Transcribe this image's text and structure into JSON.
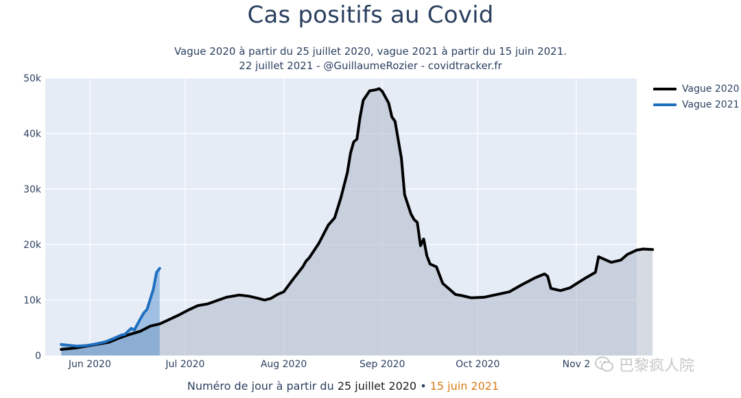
{
  "chart_data": {
    "type": "area",
    "title": "Cas positifs au Covid",
    "subtitle_line1": "Vague 2020 à partir du 25 juillet 2020, vague 2021 à partir du 15 juin 2021.",
    "subtitle_line2": "22 juillet 2021 - @GuillaumeRozier - covidtracker.fr",
    "xlabel_prefix": "Numéro de jour à partir du ",
    "xlabel_date2020": "25 juillet 2020",
    "xlabel_sep": " • ",
    "xlabel_date2021": "15 juin 2021",
    "x_tick_labels": [
      "Jun 2020",
      "Jul 2020",
      "Aug 2020",
      "Sep 2020",
      "Oct 2020",
      "Nov 2"
    ],
    "x_tick_days": [
      9,
      39,
      70,
      101,
      131,
      162
    ],
    "x_range": [
      -5,
      181
    ],
    "y_ticks": [
      0,
      10000,
      20000,
      30000,
      40000,
      50000
    ],
    "y_tick_labels": [
      "0",
      "10k",
      "20k",
      "30k",
      "40k",
      "50k"
    ],
    "ylim": [
      0,
      50000
    ],
    "grid": true,
    "legend_position": "top-right",
    "series": [
      {
        "name": "Vague 2020",
        "color": "#000000",
        "fill": "rgba(165,172,190,0.45)",
        "points": [
          [
            0,
            1100
          ],
          [
            5,
            1400
          ],
          [
            10,
            1900
          ],
          [
            15,
            2400
          ],
          [
            18,
            3100
          ],
          [
            21,
            3700
          ],
          [
            25,
            4400
          ],
          [
            28,
            5300
          ],
          [
            31,
            5700
          ],
          [
            34,
            6500
          ],
          [
            37,
            7300
          ],
          [
            40,
            8200
          ],
          [
            43,
            9000
          ],
          [
            46,
            9300
          ],
          [
            49,
            9900
          ],
          [
            52,
            10500
          ],
          [
            56,
            10900
          ],
          [
            59,
            10700
          ],
          [
            62,
            10300
          ],
          [
            64,
            10000
          ],
          [
            66,
            10300
          ],
          [
            68,
            11000
          ],
          [
            70,
            11500
          ],
          [
            73,
            13800
          ],
          [
            76,
            16000
          ],
          [
            77,
            17000
          ],
          [
            78,
            17600
          ],
          [
            81,
            20200
          ],
          [
            84,
            23500
          ],
          [
            86,
            24800
          ],
          [
            88,
            28500
          ],
          [
            90,
            33000
          ],
          [
            91,
            36500
          ],
          [
            92,
            38500
          ],
          [
            93,
            39000
          ],
          [
            94,
            43000
          ],
          [
            95,
            46000
          ],
          [
            97,
            47700
          ],
          [
            99,
            47900
          ],
          [
            100,
            48100
          ],
          [
            101,
            47600
          ],
          [
            103,
            45500
          ],
          [
            104,
            43000
          ],
          [
            105,
            42200
          ],
          [
            107,
            35500
          ],
          [
            108,
            29000
          ],
          [
            110,
            25500
          ],
          [
            111,
            24500
          ],
          [
            112,
            24000
          ],
          [
            113,
            19800
          ],
          [
            114,
            21000
          ],
          [
            115,
            18000
          ],
          [
            116,
            16500
          ],
          [
            118,
            16000
          ],
          [
            120,
            13000
          ],
          [
            122,
            12000
          ],
          [
            124,
            11000
          ],
          [
            126,
            10800
          ],
          [
            129,
            10400
          ],
          [
            133,
            10500
          ],
          [
            137,
            11000
          ],
          [
            141,
            11500
          ],
          [
            145,
            12800
          ],
          [
            149,
            14000
          ],
          [
            152,
            14700
          ],
          [
            153,
            14300
          ],
          [
            154,
            12100
          ],
          [
            157,
            11700
          ],
          [
            160,
            12200
          ],
          [
            163,
            13300
          ],
          [
            165,
            14000
          ],
          [
            168,
            15000
          ],
          [
            169,
            17800
          ],
          [
            171,
            17300
          ],
          [
            173,
            16800
          ],
          [
            176,
            17200
          ],
          [
            178,
            18200
          ],
          [
            181,
            19000
          ],
          [
            183,
            19200
          ],
          [
            186,
            19100
          ]
        ]
      },
      {
        "name": "Vague 2021",
        "color": "#1f6fbf",
        "fill": "rgba(31,111,191,0.35)",
        "points": [
          [
            0,
            2000
          ],
          [
            3,
            1800
          ],
          [
            5,
            1700
          ],
          [
            8,
            1800
          ],
          [
            11,
            2100
          ],
          [
            14,
            2500
          ],
          [
            17,
            3200
          ],
          [
            19,
            3700
          ],
          [
            20,
            3800
          ],
          [
            22,
            4900
          ],
          [
            23,
            4600
          ],
          [
            25,
            6700
          ],
          [
            26,
            7700
          ],
          [
            27,
            8300
          ],
          [
            29,
            12000
          ],
          [
            30,
            15000
          ],
          [
            31,
            15700
          ]
        ]
      }
    ]
  },
  "watermark": {
    "text": "巴黎疯人院"
  }
}
